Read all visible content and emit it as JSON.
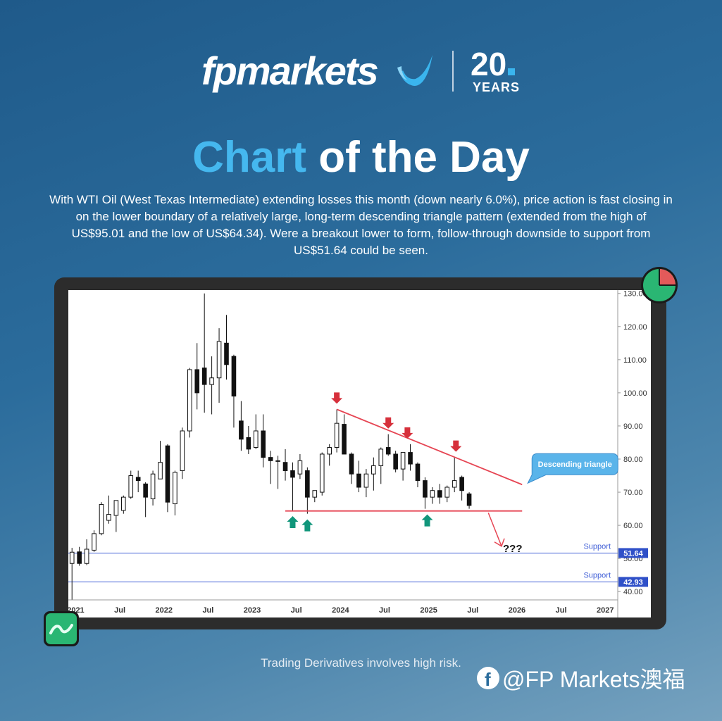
{
  "brand": {
    "name": "fpmarkets",
    "anniversary": "20",
    "anniversary_unit": "YEARS",
    "accent_color": "#45b8ef"
  },
  "heading": {
    "accent_text": "Chart",
    "rest_text": "of the Day"
  },
  "description": "With WTI Oil (West Texas Intermediate) extending losses this month (down nearly 6.0%), price action is fast closing in on the lower boundary of a relatively large, long-term descending triangle pattern (extended from the high of US$95.01 and the low of US$64.34). Were a breakout lower to form, follow-through downside to support from US$51.64 could be seen.",
  "disclaimer": "Trading Derivatives involves high risk.",
  "social": {
    "icon": "facebook-icon",
    "handle": "@FP Markets澳福"
  },
  "chart_data": {
    "type": "candlestick",
    "timeframe": "monthly",
    "x_labels": [
      {
        "t": 0.5,
        "label": "2021"
      },
      {
        "t": 6.5,
        "label": "Jul"
      },
      {
        "t": 12.5,
        "label": "2022"
      },
      {
        "t": 18.5,
        "label": "Jul"
      },
      {
        "t": 24.5,
        "label": "2023"
      },
      {
        "t": 30.5,
        "label": "Jul"
      },
      {
        "t": 36.5,
        "label": "2024"
      },
      {
        "t": 42.5,
        "label": "Jul"
      },
      {
        "t": 48.5,
        "label": "2025"
      },
      {
        "t": 54.5,
        "label": "Jul"
      },
      {
        "t": 60.5,
        "label": "2026"
      },
      {
        "t": 66.5,
        "label": "Jul"
      },
      {
        "t": 72.5,
        "label": "2027"
      }
    ],
    "y_ticks": [
      130,
      120,
      110,
      100,
      90,
      80,
      70,
      60,
      50,
      40
    ],
    "y_tick_labels": [
      "130.00",
      "120.00",
      "110.00",
      "100.00",
      "90.00",
      "80.00",
      "70.00",
      "60.00",
      "50.00",
      "40.00"
    ],
    "ylim": [
      37.5,
      131
    ],
    "x_range": [
      -0.5,
      74.2
    ],
    "candles": [
      {
        "t": 0,
        "o": 48.5,
        "h": 53.2,
        "l": 37.6,
        "c": 51.9
      },
      {
        "t": 1,
        "o": 52.0,
        "h": 53.5,
        "l": 47.8,
        "c": 48.5
      },
      {
        "t": 2,
        "o": 48.5,
        "h": 55.8,
        "l": 48.0,
        "c": 52.8
      },
      {
        "t": 3,
        "o": 52.5,
        "h": 58.5,
        "l": 52.0,
        "c": 57.5
      },
      {
        "t": 4,
        "o": 57.5,
        "h": 67.0,
        "l": 57.0,
        "c": 66.3
      },
      {
        "t": 5,
        "o": 61.5,
        "h": 69.0,
        "l": 60.5,
        "c": 63.3
      },
      {
        "t": 6,
        "o": 63.0,
        "h": 67.5,
        "l": 58.0,
        "c": 67.5
      },
      {
        "t": 7,
        "o": 64.5,
        "h": 69.0,
        "l": 63.5,
        "c": 68.5
      },
      {
        "t": 8,
        "o": 68.5,
        "h": 76.5,
        "l": 68.0,
        "c": 75.0
      },
      {
        "t": 9,
        "o": 74.5,
        "h": 76.5,
        "l": 70.0,
        "c": 73.5
      },
      {
        "t": 10,
        "o": 72.5,
        "h": 73.0,
        "l": 62.5,
        "c": 68.5
      },
      {
        "t": 11,
        "o": 68.0,
        "h": 76.5,
        "l": 66.0,
        "c": 75.5
      },
      {
        "t": 12,
        "o": 74.0,
        "h": 85.5,
        "l": 74.0,
        "c": 79.0
      },
      {
        "t": 13,
        "o": 84.0,
        "h": 84.5,
        "l": 64.0,
        "c": 67.0
      },
      {
        "t": 14,
        "o": 66.5,
        "h": 76.5,
        "l": 63.0,
        "c": 76.0
      },
      {
        "t": 15,
        "o": 76.5,
        "h": 89.5,
        "l": 74.0,
        "c": 88.5
      },
      {
        "t": 16,
        "o": 88.5,
        "h": 107.5,
        "l": 86.5,
        "c": 107.0
      },
      {
        "t": 17,
        "o": 107.0,
        "h": 115.0,
        "l": 95.0,
        "c": 100.0
      },
      {
        "t": 18,
        "o": 107.5,
        "h": 130.0,
        "l": 94.0,
        "c": 102.5
      },
      {
        "t": 19,
        "o": 102.5,
        "h": 111.0,
        "l": 93.5,
        "c": 104.5
      },
      {
        "t": 20,
        "o": 104.5,
        "h": 119.5,
        "l": 97.0,
        "c": 115.5
      },
      {
        "t": 21,
        "o": 115.0,
        "h": 123.5,
        "l": 104.0,
        "c": 108.5
      },
      {
        "t": 22,
        "o": 111.0,
        "h": 111.5,
        "l": 89.5,
        "c": 99.0
      },
      {
        "t": 23,
        "o": 91.5,
        "h": 97.5,
        "l": 82.5,
        "c": 86.0
      },
      {
        "t": 24,
        "o": 86.5,
        "h": 90.0,
        "l": 81.5,
        "c": 83.0
      },
      {
        "t": 25,
        "o": 83.5,
        "h": 93.5,
        "l": 83.0,
        "c": 88.5
      },
      {
        "t": 26,
        "o": 88.5,
        "h": 93.5,
        "l": 77.5,
        "c": 80.5
      },
      {
        "t": 27,
        "o": 80.5,
        "h": 82.5,
        "l": 72.5,
        "c": 79.5
      },
      {
        "t": 28,
        "o": 79.5,
        "h": 81.0,
        "l": 71.0,
        "c": 79.5
      },
      {
        "t": 29,
        "o": 79.0,
        "h": 83.0,
        "l": 73.5,
        "c": 76.5
      },
      {
        "t": 30,
        "o": 76.5,
        "h": 79.0,
        "l": 64.5,
        "c": 74.5
      },
      {
        "t": 31,
        "o": 75.5,
        "h": 81.5,
        "l": 74.0,
        "c": 79.5
      },
      {
        "t": 32,
        "o": 76.5,
        "h": 77.5,
        "l": 63.5,
        "c": 68.5
      },
      {
        "t": 33,
        "o": 68.5,
        "h": 70.5,
        "l": 67.0,
        "c": 70.5
      },
      {
        "t": 34,
        "o": 70.0,
        "h": 82.0,
        "l": 69.0,
        "c": 81.5
      },
      {
        "t": 35,
        "o": 81.5,
        "h": 84.5,
        "l": 78.0,
        "c": 83.5
      },
      {
        "t": 36,
        "o": 83.5,
        "h": 95.0,
        "l": 82.0,
        "c": 90.8
      },
      {
        "t": 37,
        "o": 90.5,
        "h": 93.5,
        "l": 81.5,
        "c": 81.5
      },
      {
        "t": 38,
        "o": 81.5,
        "h": 82.0,
        "l": 72.5,
        "c": 75.5
      },
      {
        "t": 39,
        "o": 75.5,
        "h": 79.5,
        "l": 70.0,
        "c": 71.5
      },
      {
        "t": 40,
        "o": 71.5,
        "h": 77.0,
        "l": 68.5,
        "c": 75.5
      },
      {
        "t": 41,
        "o": 75.5,
        "h": 80.5,
        "l": 70.5,
        "c": 78.0
      },
      {
        "t": 42,
        "o": 78.0,
        "h": 83.5,
        "l": 72.5,
        "c": 83.0
      },
      {
        "t": 43,
        "o": 83.5,
        "h": 87.5,
        "l": 81.0,
        "c": 81.5
      },
      {
        "t": 44,
        "o": 81.5,
        "h": 82.5,
        "l": 76.0,
        "c": 77.0
      },
      {
        "t": 45,
        "o": 77.0,
        "h": 81.5,
        "l": 73.5,
        "c": 82.0
      },
      {
        "t": 46,
        "o": 82.0,
        "h": 84.5,
        "l": 76.5,
        "c": 78.5
      },
      {
        "t": 47,
        "o": 78.5,
        "h": 79.0,
        "l": 71.5,
        "c": 73.5
      },
      {
        "t": 48,
        "o": 73.5,
        "h": 74.5,
        "l": 65.0,
        "c": 68.5
      },
      {
        "t": 49,
        "o": 68.5,
        "h": 71.5,
        "l": 66.5,
        "c": 70.5
      },
      {
        "t": 50,
        "o": 70.5,
        "h": 72.5,
        "l": 66.5,
        "c": 68.5
      },
      {
        "t": 51,
        "o": 68.5,
        "h": 72.0,
        "l": 67.0,
        "c": 71.5
      },
      {
        "t": 52,
        "o": 71.5,
        "h": 80.5,
        "l": 70.0,
        "c": 73.5
      },
      {
        "t": 53,
        "o": 74.5,
        "h": 75.0,
        "l": 67.5,
        "c": 70.5
      },
      {
        "t": 54,
        "o": 69.5,
        "h": 70.0,
        "l": 65.0,
        "c": 66.0
      }
    ],
    "colors": {
      "bull": "#ffffff",
      "bear": "#111111",
      "pattern": "#e64553",
      "support": "#3f5ed6",
      "arrow_up": "#11967b",
      "arrow_down": "#d6303b"
    },
    "pattern": {
      "upper_line": {
        "from": {
          "t": 36,
          "v": 95.01
        },
        "to": {
          "t": 61.2,
          "v": 72.3
        }
      },
      "lower_line": {
        "from": {
          "t": 29,
          "v": 64.34
        },
        "to": {
          "t": 61.2,
          "v": 64.34
        }
      },
      "breakout_path": [
        {
          "t": 56.6,
          "v": 63.8
        },
        {
          "t": 58.4,
          "v": 53.7
        }
      ],
      "breakout_label": "???",
      "callout": "Descending triangle"
    },
    "support_levels": [
      {
        "value": 51.64,
        "label": "Support",
        "tag": "51.64"
      },
      {
        "value": 42.93,
        "label": "Support",
        "tag": "42.93"
      }
    ],
    "markers_down": [
      {
        "t": 36,
        "v": 95.01
      },
      {
        "t": 43,
        "v": 87.5
      },
      {
        "t": 45.6,
        "v": 84.5
      },
      {
        "t": 52.2,
        "v": 80.5
      }
    ],
    "markers_up": [
      {
        "t": 30,
        "v": 64.5
      },
      {
        "t": 32,
        "v": 63.5
      },
      {
        "t": 48.3,
        "v": 65.0
      }
    ]
  }
}
